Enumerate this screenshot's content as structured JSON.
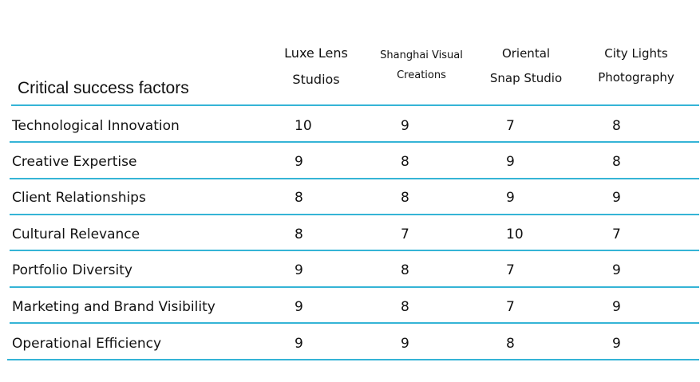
{
  "accent_color": "#35b4d6",
  "chart_data": {
    "type": "table",
    "title": "",
    "row_header": "Critical success factors",
    "columns": [
      {
        "lines": [
          "Luxe Lens",
          "Studios"
        ]
      },
      {
        "lines": [
          "Shanghai Visual",
          "Creations"
        ]
      },
      {
        "lines": [
          "Oriental",
          "Snap Studio"
        ]
      },
      {
        "lines": [
          "City Lights",
          "Photography"
        ]
      }
    ],
    "rows": [
      {
        "label": "Technological Innovation",
        "values": [
          10,
          9,
          7,
          8
        ]
      },
      {
        "label": "Creative Expertise",
        "values": [
          9,
          8,
          9,
          8
        ]
      },
      {
        "label": "Client Relationships",
        "values": [
          8,
          8,
          9,
          9
        ]
      },
      {
        "label": "Cultural Relevance",
        "values": [
          8,
          7,
          10,
          7
        ]
      },
      {
        "label": "Portfolio Diversity",
        "values": [
          9,
          8,
          7,
          9
        ]
      },
      {
        "label": "Marketing and Brand Visibility",
        "values": [
          9,
          8,
          7,
          9
        ]
      },
      {
        "label": "Operational Efficiency",
        "values": [
          9,
          9,
          8,
          9
        ]
      }
    ]
  }
}
